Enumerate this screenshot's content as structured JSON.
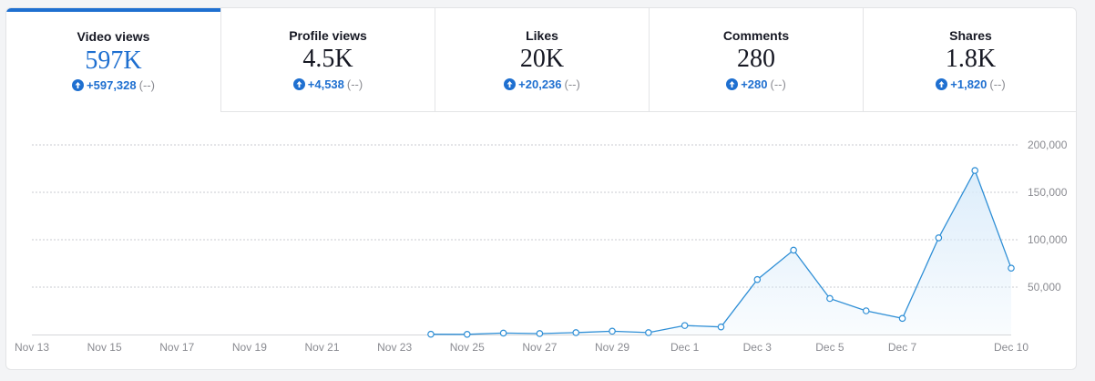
{
  "colors": {
    "accent": "#1e6fd0",
    "line": "#2f8fd6",
    "fill": "#d9ebfa",
    "grid": "#c9cbd0",
    "axis_text": "#8a8b91"
  },
  "metrics": [
    {
      "label": "Video views",
      "value": "597K",
      "delta": "+597,328",
      "previous": "(--)",
      "active": true,
      "icon": "arrow-up-circle-icon"
    },
    {
      "label": "Profile views",
      "value": "4.5K",
      "delta": "+4,538",
      "previous": "(--)",
      "active": false,
      "icon": "arrow-up-circle-icon"
    },
    {
      "label": "Likes",
      "value": "20K",
      "delta": "+20,236",
      "previous": "(--)",
      "active": false,
      "icon": "arrow-up-circle-icon"
    },
    {
      "label": "Comments",
      "value": "280",
      "delta": "+280",
      "previous": "(--)",
      "active": false,
      "icon": "arrow-up-circle-icon"
    },
    {
      "label": "Shares",
      "value": "1.8K",
      "delta": "+1,820",
      "previous": "(--)",
      "active": false,
      "icon": "arrow-up-circle-icon"
    }
  ],
  "chart_data": {
    "type": "area",
    "title": "Video views",
    "x_labels": [
      "Nov 13",
      "Nov 15",
      "Nov 17",
      "Nov 19",
      "Nov 21",
      "Nov 23",
      "Nov 25",
      "Nov 27",
      "Nov 29",
      "Dec 1",
      "Dec 3",
      "Dec 5",
      "Dec 7",
      "Dec 10"
    ],
    "x_label_days": [
      0,
      2,
      4,
      6,
      8,
      10,
      12,
      14,
      16,
      18,
      20,
      22,
      24,
      27
    ],
    "x_range_days": [
      0,
      27
    ],
    "points": [
      {
        "date": "Nov 24",
        "day": 11,
        "value": 300
      },
      {
        "date": "Nov 25",
        "day": 12,
        "value": 200
      },
      {
        "date": "Nov 26",
        "day": 13,
        "value": 1500
      },
      {
        "date": "Nov 27",
        "day": 14,
        "value": 1000
      },
      {
        "date": "Nov 28",
        "day": 15,
        "value": 2000
      },
      {
        "date": "Nov 29",
        "day": 16,
        "value": 3500
      },
      {
        "date": "Nov 30",
        "day": 17,
        "value": 2000
      },
      {
        "date": "Dec 1",
        "day": 18,
        "value": 9500
      },
      {
        "date": "Dec 2",
        "day": 19,
        "value": 8000
      },
      {
        "date": "Dec 3",
        "day": 20,
        "value": 58000
      },
      {
        "date": "Dec 4",
        "day": 21,
        "value": 89000
      },
      {
        "date": "Dec 5",
        "day": 22,
        "value": 38000
      },
      {
        "date": "Dec 6",
        "day": 23,
        "value": 25000
      },
      {
        "date": "Dec 7",
        "day": 24,
        "value": 17000
      },
      {
        "date": "Dec 8",
        "day": 25,
        "value": 102000
      },
      {
        "date": "Dec 9",
        "day": 26,
        "value": 173000
      },
      {
        "date": "Dec 10",
        "day": 27,
        "value": 70000
      }
    ],
    "y_ticks": [
      50000,
      100000,
      150000,
      200000
    ],
    "y_tick_labels": [
      "50,000",
      "100,000",
      "150,000",
      "200,000"
    ],
    "ylim": [
      0,
      200000
    ],
    "grid": true
  }
}
